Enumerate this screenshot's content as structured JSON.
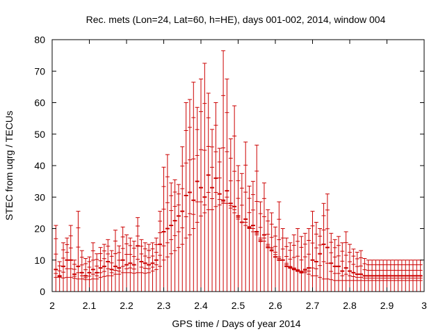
{
  "chart_data": {
    "type": "scatter",
    "style": "vertical error bars (value ranges) per time bin",
    "title": "Rec. mets (Lon=24, Lat=60, h=HE), days 001-002, 2014, window 004",
    "xlabel": "GPS time / Days of year 2014",
    "ylabel": "STEC from uqrg / TECUs",
    "xlim": [
      2,
      3
    ],
    "ylim": [
      0,
      80
    ],
    "xticks": [
      "2",
      "2.1",
      "2.2",
      "2.3",
      "2.4",
      "2.5",
      "2.6",
      "2.7",
      "2.8",
      "2.9",
      "3"
    ],
    "yticks": [
      "0",
      "10",
      "20",
      "30",
      "40",
      "50",
      "60",
      "70",
      "80"
    ],
    "grid": false,
    "legend": "none",
    "color": "#cc0000",
    "series": [
      {
        "name": "STEC",
        "x": [
          2.01,
          2.02,
          2.03,
          2.04,
          2.05,
          2.06,
          2.07,
          2.08,
          2.09,
          2.1,
          2.11,
          2.12,
          2.13,
          2.14,
          2.15,
          2.16,
          2.17,
          2.18,
          2.19,
          2.2,
          2.21,
          2.22,
          2.23,
          2.24,
          2.25,
          2.26,
          2.27,
          2.28,
          2.29,
          2.3,
          2.31,
          2.32,
          2.33,
          2.34,
          2.35,
          2.36,
          2.37,
          2.38,
          2.39,
          2.4,
          2.41,
          2.42,
          2.43,
          2.44,
          2.45,
          2.46,
          2.47,
          2.48,
          2.49,
          2.5,
          2.51,
          2.52,
          2.53,
          2.54,
          2.55,
          2.56,
          2.57,
          2.58,
          2.59,
          2.6,
          2.61,
          2.62,
          2.63,
          2.64,
          2.65,
          2.66,
          2.67,
          2.68,
          2.69,
          2.7,
          2.71,
          2.72,
          2.73,
          2.74,
          2.75,
          2.76,
          2.77,
          2.78,
          2.79,
          2.8,
          2.81,
          2.82,
          2.83,
          2.84,
          2.85,
          2.86,
          2.87,
          2.88,
          2.89,
          2.9,
          2.91,
          2.92,
          2.93,
          2.94,
          2.95,
          2.96,
          2.97,
          2.98,
          2.99
        ],
        "low": [
          4.5,
          4.5,
          4.3,
          4.5,
          4.5,
          4.2,
          4.0,
          4.0,
          3.8,
          3.8,
          4.0,
          4.0,
          4.5,
          4.8,
          5.0,
          5.0,
          5.5,
          5.5,
          6.0,
          6.0,
          6.0,
          5.8,
          6.0,
          6.0,
          5.8,
          6.0,
          6.5,
          7.0,
          8.0,
          10.0,
          11.0,
          12.0,
          13.0,
          14.0,
          15.0,
          17.0,
          18.0,
          20.0,
          22.0,
          24.0,
          25.0,
          26.0,
          26.0,
          27.0,
          27.5,
          28.0,
          28.0,
          26.5,
          25.0,
          23.0,
          22.0,
          21.0,
          20.0,
          19.0,
          18.0,
          17.0,
          16.0,
          15.0,
          14.0,
          12.5,
          11.0,
          10.0,
          9.0,
          8.0,
          7.5,
          7.0,
          6.5,
          6.0,
          5.5,
          5.0,
          5.0,
          4.5,
          4.0,
          4.0,
          3.8,
          3.5,
          3.5,
          3.5,
          3.5,
          3.5,
          3.5,
          3.5,
          3.5,
          3.5,
          3.5,
          3.5,
          3.5,
          3.5,
          3.5,
          3.5,
          3.5,
          3.5,
          3.5,
          3.5,
          3.5,
          3.5,
          3.5,
          3.5,
          3.5
        ],
        "high": [
          21.0,
          9.5,
          15.5,
          17.0,
          21.0,
          10.0,
          25.5,
          13.0,
          10.5,
          11.0,
          15.5,
          12.0,
          14.0,
          15.0,
          16.5,
          13.0,
          19.5,
          14.5,
          20.5,
          18.0,
          17.0,
          16.0,
          23.5,
          16.5,
          15.5,
          15.0,
          15.5,
          17.0,
          25.5,
          39.5,
          43.5,
          34.5,
          35.5,
          34.0,
          46.0,
          60.0,
          61.0,
          66.5,
          58.5,
          67.5,
          72.5,
          63.0,
          51.5,
          60.0,
          45.5,
          76.5,
          67.5,
          48.5,
          59.0,
          40.0,
          37.5,
          47.5,
          33.5,
          35.0,
          46.5,
          28.5,
          34.5,
          26.0,
          25.0,
          20.5,
          28.5,
          20.0,
          17.0,
          15.5,
          18.0,
          20.0,
          17.5,
          18.5,
          20.0,
          25.5,
          22.0,
          20.0,
          28.0,
          31.0,
          18.5,
          16.5,
          17.5,
          15.5,
          19.0,
          15.0,
          13.5,
          12.5,
          13.0,
          10.5,
          10.0,
          10.0,
          10.0,
          10.0,
          10.0,
          10.0,
          10.0,
          10.0,
          10.0,
          10.0,
          10.0,
          10.0,
          10.0,
          10.0,
          10.0
        ],
        "mid": [
          7.0,
          5.0,
          8.0,
          10.0,
          10.0,
          5.5,
          8.0,
          6.0,
          5.0,
          6.0,
          7.0,
          6.0,
          7.5,
          8.0,
          9.5,
          7.0,
          8.0,
          7.5,
          10.0,
          8.5,
          9.0,
          8.5,
          14.5,
          9.5,
          9.0,
          8.5,
          9.0,
          10.0,
          15.0,
          19.0,
          20.0,
          21.0,
          22.5,
          24.0,
          25.5,
          30.5,
          31.5,
          29.0,
          35.0,
          33.0,
          30.0,
          37.0,
          33.0,
          36.0,
          31.0,
          29.0,
          32.0,
          28.0,
          27.0,
          24.0,
          22.0,
          23.0,
          20.5,
          21.0,
          19.0,
          16.0,
          18.0,
          14.0,
          13.0,
          11.0,
          10.0,
          10.0,
          8.0,
          7.5,
          7.0,
          6.5,
          6.0,
          7.0,
          7.5,
          10.0,
          9.5,
          12.0,
          15.0,
          14.0,
          9.0,
          8.0,
          8.0,
          6.5,
          7.5,
          6.5,
          6.0,
          5.5,
          5.5,
          5.0,
          5.0,
          5.0,
          5.0,
          5.0,
          5.0,
          5.0,
          5.0,
          5.0,
          5.0,
          5.0,
          5.0,
          5.0,
          5.0,
          5.0,
          5.0
        ]
      }
    ]
  }
}
